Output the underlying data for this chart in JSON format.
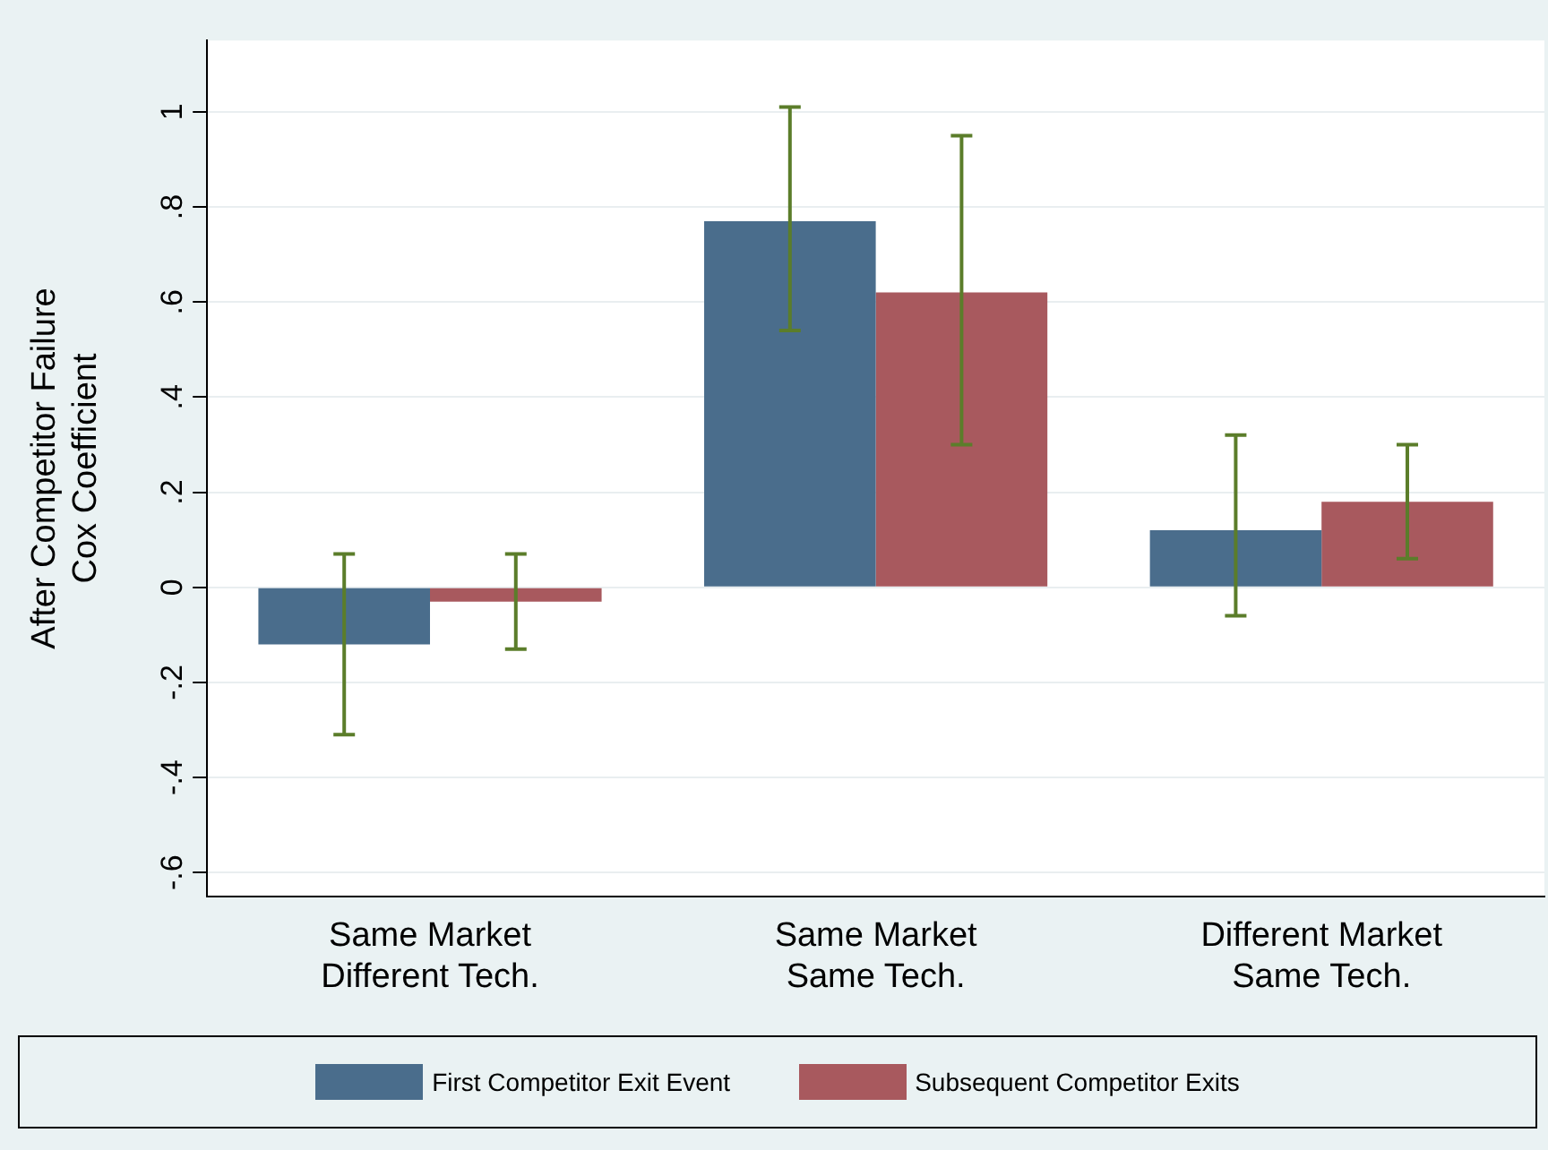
{
  "chart_data": {
    "type": "bar",
    "ylabel": "After Competitor Failure\nCox Coefficient",
    "categories": [
      "Same Market\nDifferent Tech.",
      "Same Market\nSame Tech.",
      "Different Market\nSame Tech."
    ],
    "series": [
      {
        "name": "First Competitor Exit Event",
        "color": "#4a6d8c",
        "values": [
          -0.12,
          0.77,
          0.12
        ],
        "errors": [
          [
            -0.31,
            0.07
          ],
          [
            0.54,
            1.01
          ],
          [
            -0.06,
            0.32
          ]
        ]
      },
      {
        "name": "Subsequent Competitor Exits",
        "color": "#a8595e",
        "values": [
          -0.03,
          0.62,
          0.18
        ],
        "errors": [
          [
            -0.13,
            0.07
          ],
          [
            0.3,
            0.95
          ],
          [
            0.06,
            0.3
          ]
        ]
      }
    ],
    "ylim": [
      -0.65,
      1.15
    ],
    "yticks": [
      {
        "value": -0.6,
        "label": "-.6"
      },
      {
        "value": -0.4,
        "label": "-.4"
      },
      {
        "value": -0.2,
        "label": "-.2"
      },
      0,
      {
        "value": 0.2,
        "label": ".2"
      },
      {
        "value": 0.4,
        "label": ".4"
      },
      {
        "value": 0.6,
        "label": ".6"
      },
      {
        "value": 0.8,
        "label": ".8"
      },
      1
    ],
    "grid": "y",
    "legend": "bottom"
  }
}
